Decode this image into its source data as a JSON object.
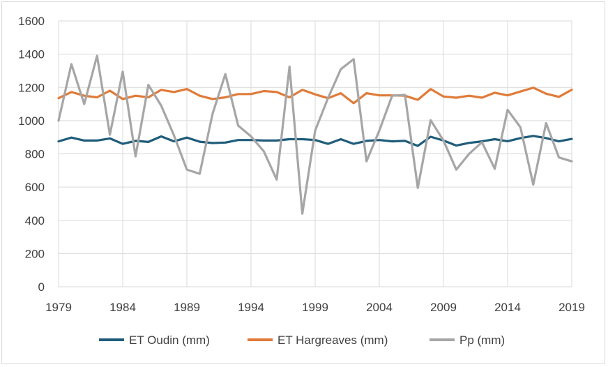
{
  "chart_data": {
    "type": "line",
    "title": "",
    "xlabel": "",
    "ylabel": "",
    "ylim": [
      0,
      1600
    ],
    "yticks": [
      0,
      200,
      400,
      600,
      800,
      1000,
      1200,
      1400,
      1600
    ],
    "xlim": [
      1979,
      2019
    ],
    "xticks": [
      1979,
      1984,
      1989,
      1994,
      1999,
      2004,
      2009,
      2014,
      2019
    ],
    "grid": true,
    "legend_position": "bottom",
    "x": [
      1979,
      1980,
      1981,
      1982,
      1983,
      1984,
      1985,
      1986,
      1987,
      1988,
      1989,
      1990,
      1991,
      1992,
      1993,
      1994,
      1995,
      1996,
      1997,
      1998,
      1999,
      2000,
      2001,
      2002,
      2003,
      2004,
      2005,
      2006,
      2007,
      2008,
      2009,
      2010,
      2011,
      2012,
      2013,
      2014,
      2015,
      2016,
      2017,
      2018,
      2019
    ],
    "series": [
      {
        "name": "ET Oudin (mm)",
        "color": "#1f5c7a",
        "values": [
          875,
          898,
          880,
          880,
          893,
          860,
          878,
          872,
          905,
          875,
          898,
          873,
          865,
          868,
          883,
          883,
          880,
          880,
          888,
          888,
          883,
          860,
          888,
          860,
          878,
          883,
          875,
          878,
          848,
          903,
          880,
          850,
          866,
          875,
          888,
          876,
          895,
          908,
          895,
          875,
          890
        ]
      },
      {
        "name": "ET Hargreaves (mm)",
        "color": "#e07b39",
        "values": [
          1135,
          1172,
          1150,
          1140,
          1180,
          1130,
          1150,
          1140,
          1185,
          1172,
          1190,
          1150,
          1130,
          1140,
          1160,
          1160,
          1178,
          1172,
          1140,
          1185,
          1158,
          1135,
          1165,
          1105,
          1165,
          1152,
          1152,
          1150,
          1125,
          1190,
          1145,
          1138,
          1150,
          1138,
          1168,
          1152,
          1175,
          1198,
          1162,
          1143,
          1186
        ]
      },
      {
        "name": "Pp (mm)",
        "color": "#a6a6a6",
        "values": [
          1000,
          1340,
          1100,
          1390,
          915,
          1295,
          785,
          1215,
          1090,
          910,
          705,
          680,
          1040,
          1280,
          970,
          905,
          815,
          645,
          1325,
          440,
          940,
          1135,
          1310,
          1370,
          755,
          940,
          1150,
          1155,
          595,
          1003,
          880,
          705,
          800,
          870,
          710,
          1065,
          960,
          615,
          985,
          778,
          755
        ]
      }
    ]
  }
}
